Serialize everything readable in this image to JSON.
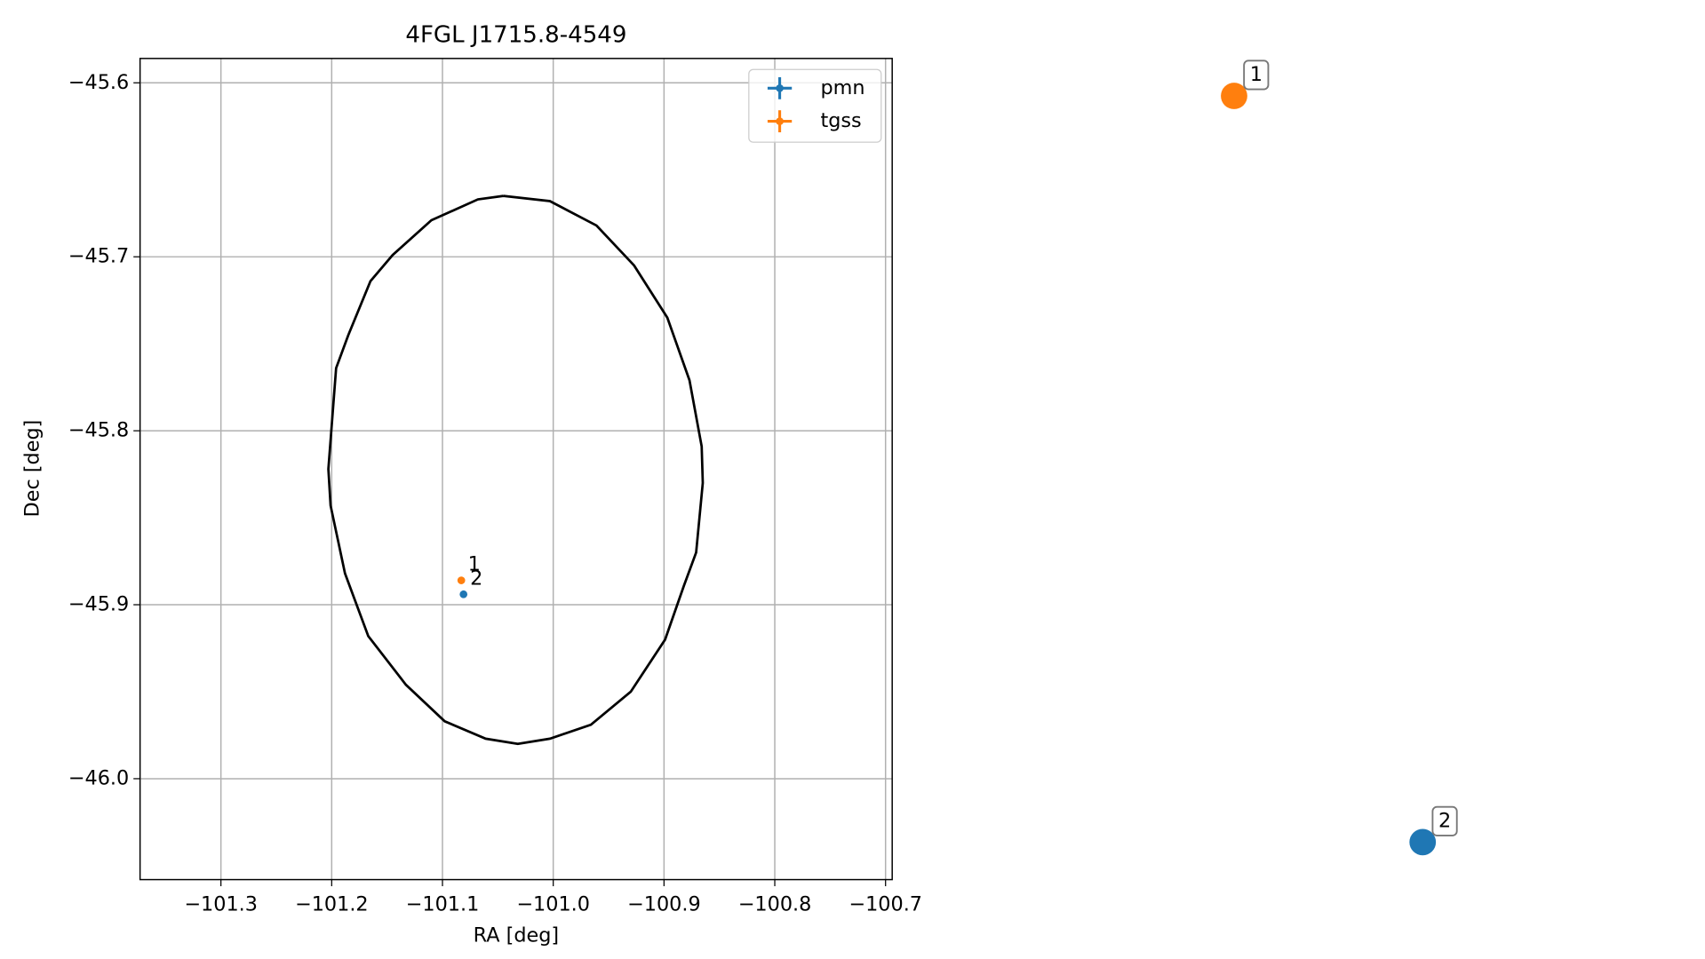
{
  "chart_data": {
    "type": "scatter",
    "title": "4FGL J1715.8-4549",
    "xlabel": "RA [deg]",
    "ylabel": "Dec [deg]",
    "xlim": [
      -101.373,
      -100.694
    ],
    "ylim": [
      -46.058,
      -45.586
    ],
    "xticks": [
      {
        "value": -101.3,
        "label": "−101.3"
      },
      {
        "value": -101.2,
        "label": "−101.2"
      },
      {
        "value": -101.1,
        "label": "−101.1"
      },
      {
        "value": -101.0,
        "label": "−101.0"
      },
      {
        "value": -100.9,
        "label": "−100.9"
      },
      {
        "value": -100.8,
        "label": "−100.8"
      },
      {
        "value": -100.7,
        "label": "−100.7"
      }
    ],
    "yticks": [
      {
        "value": -45.6,
        "label": "−45.6"
      },
      {
        "value": -45.7,
        "label": "−45.7"
      },
      {
        "value": -45.8,
        "label": "−45.8"
      },
      {
        "value": -45.9,
        "label": "−45.9"
      },
      {
        "value": -46.0,
        "label": "−46.0"
      }
    ],
    "grid": true,
    "legend": "upper right",
    "series": [
      {
        "name": "pmn",
        "color": "#1f77b4",
        "x": [
          -101.081
        ],
        "values": [
          -45.894
        ],
        "labels": [
          "2"
        ]
      },
      {
        "name": "tgss",
        "color": "#ff7f0e",
        "x": [
          -101.083
        ],
        "values": [
          -45.886
        ],
        "labels": [
          "1"
        ]
      }
    ],
    "outline": {
      "color": "#000000",
      "x": [
        -101.045,
        -101.003,
        -100.961,
        -100.927,
        -100.897,
        -100.877,
        -100.866,
        -100.865,
        -100.871,
        -100.882,
        -100.899,
        -100.93,
        -100.966,
        -101.003,
        -101.032,
        -101.061,
        -101.098,
        -101.133,
        -101.167,
        -101.188,
        -101.201,
        -101.203,
        -101.196,
        -101.185,
        -101.165,
        -101.145,
        -101.11,
        -101.068,
        -101.045
      ],
      "values": [
        -45.665,
        -45.668,
        -45.682,
        -45.705,
        -45.735,
        -45.771,
        -45.809,
        -45.83,
        -45.87,
        -45.889,
        -45.92,
        -45.95,
        -45.969,
        -45.977,
        -45.98,
        -45.977,
        -45.967,
        -45.946,
        -45.918,
        -45.882,
        -45.843,
        -45.822,
        -45.764,
        -45.745,
        -45.714,
        -45.699,
        -45.679,
        -45.667,
        -45.665
      ]
    }
  }
}
